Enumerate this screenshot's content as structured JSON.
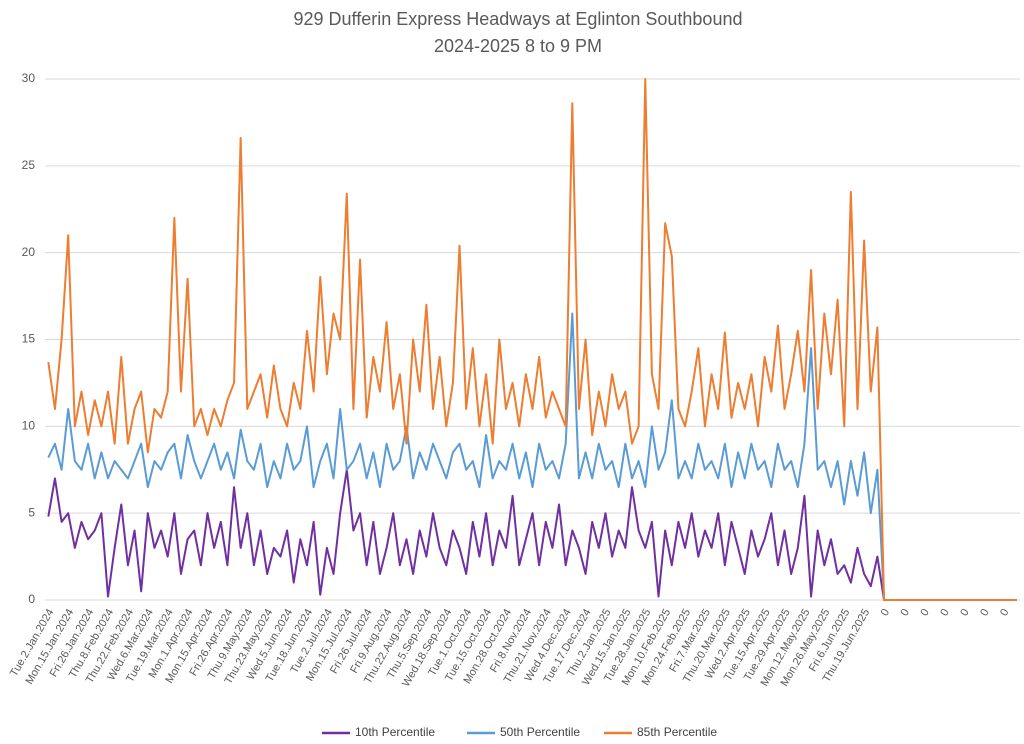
{
  "chart_data": {
    "type": "line",
    "title": "929 Dufferin Express Headways at Eglinton Southbound",
    "subtitle": "2024-2025 8 to 9 PM",
    "categories": [
      "Tue.2.Jan.2024",
      null,
      null,
      "Mon.15.Jan.2024",
      null,
      null,
      "Fri.26.Jan.2024",
      null,
      null,
      "Thu.8.Feb.2024",
      null,
      null,
      "Thu.22.Feb.2024",
      null,
      null,
      "Wed.6.Mar.2024",
      null,
      null,
      "Tue.19.Mar.2024",
      null,
      null,
      "Mon.1.Apr.2024",
      null,
      null,
      "Mon.15.Apr.2024",
      null,
      null,
      "Fri.26.Apr.2024",
      null,
      null,
      "Thu.9.May.2024",
      null,
      null,
      "Thu.23.May.2024",
      null,
      null,
      "Wed.5.Jun.2024",
      null,
      null,
      "Tue.18.Jun.2024",
      null,
      null,
      "Tue.2.Jul.2024",
      null,
      null,
      "Mon.15.Jul.2024",
      null,
      null,
      "Fri.26.Jul.2024",
      null,
      null,
      "Fri.9.Aug.2024",
      null,
      null,
      "Thu.22.Aug.2024",
      null,
      null,
      "Thu.5.Sep.2024",
      null,
      null,
      "Wed.18.Sep.2024",
      null,
      null,
      "Tue.1.Oct.2024",
      null,
      null,
      "Tue.15.Oct.2024",
      null,
      null,
      "Mon.28.Oct.2024",
      null,
      null,
      "Fri.8.Nov.2024",
      null,
      null,
      "Thu.21.Nov.2024",
      null,
      null,
      "Wed.4.Dec.2024",
      null,
      null,
      "Tue.17.Dec.2024",
      null,
      null,
      "Thu.2.Jan.2025",
      null,
      null,
      "Wed.15.Jan.2025",
      null,
      null,
      "Tue.28.Jan.2025",
      null,
      null,
      "Mon.10.Feb.2025",
      null,
      null,
      "Mon.24.Feb.2025",
      null,
      null,
      "Fri.7.Mar.2025",
      null,
      null,
      "Thu.20.Mar.2025",
      null,
      null,
      "Wed.2.Apr.2025",
      null,
      null,
      "Tue.15.Apr.2025",
      null,
      null,
      "Tue.29.Apr.2025",
      null,
      null,
      "Mon.12.May.2025",
      null,
      null,
      "Mon.26.May.2025",
      null,
      null,
      "Fri.6.Jun.2025",
      null,
      null,
      "Thu.19.Jun.2025",
      null,
      null,
      "0",
      null,
      null,
      "0",
      null,
      null,
      "0",
      null,
      null,
      "0",
      null,
      null,
      "0",
      null,
      null,
      "0",
      null,
      null,
      "0",
      null,
      null
    ],
    "series": [
      {
        "name": "10th Percentile",
        "color": "#7030a0",
        "values": [
          4.8,
          7,
          4.5,
          5,
          3,
          4.5,
          3.5,
          4,
          5,
          0.2,
          3,
          5.5,
          2,
          4,
          0.5,
          5,
          3,
          4,
          2.5,
          5,
          1.5,
          3.5,
          4,
          2,
          5,
          3,
          4.5,
          2,
          6.5,
          3,
          5,
          2,
          4,
          1.5,
          3,
          2.5,
          4,
          1,
          3.5,
          2,
          4.5,
          0.3,
          3,
          1.5,
          5,
          7.5,
          4,
          5,
          2,
          4.5,
          1.5,
          3,
          5,
          2,
          3.5,
          1.5,
          4,
          2.5,
          5,
          3,
          2,
          4,
          3,
          1.5,
          4.5,
          2.5,
          5,
          2,
          4,
          3,
          6,
          2,
          3.5,
          5,
          2,
          4.5,
          3,
          5.5,
          2,
          4,
          3,
          1.5,
          4.5,
          3,
          5,
          2.5,
          4,
          3,
          6.5,
          4,
          3,
          4.5,
          0.2,
          4,
          2,
          4.5,
          3,
          5,
          2.5,
          4,
          3,
          5,
          2,
          4.5,
          3,
          1.5,
          4,
          2.5,
          3.5,
          5,
          2,
          4,
          1.5,
          3,
          6,
          0.2,
          4,
          2,
          3.5,
          1.5,
          2,
          1,
          3,
          1.5,
          0.8,
          2.5,
          0,
          0,
          0,
          0,
          0,
          0,
          0,
          0,
          0,
          0,
          0,
          0,
          0,
          0,
          0,
          0,
          0,
          0,
          0,
          0,
          0
        ]
      },
      {
        "name": "50th Percentile",
        "color": "#5b9bd5",
        "values": [
          8.2,
          9,
          7.5,
          11,
          8,
          7.5,
          9,
          7,
          8.5,
          7,
          8,
          7.5,
          7,
          8,
          9,
          6.5,
          8,
          7.5,
          8.5,
          9,
          7,
          9.5,
          8,
          7,
          8,
          9,
          7.5,
          8.5,
          7,
          9.8,
          8,
          7.5,
          9,
          6.5,
          8,
          7,
          9,
          7.5,
          8,
          10,
          6.5,
          8,
          9,
          7,
          11,
          7.5,
          8,
          9,
          7,
          8.5,
          6.5,
          9,
          7.5,
          8,
          10,
          7,
          8.5,
          7.5,
          9,
          8,
          7,
          8.5,
          9,
          7.5,
          8,
          6.5,
          9.5,
          7,
          8,
          7.5,
          9,
          7,
          8.5,
          6.5,
          9,
          7.5,
          8,
          7,
          9,
          16.5,
          7,
          8.5,
          7,
          9,
          7.5,
          8,
          6.5,
          9,
          7,
          8,
          6.5,
          10,
          7.5,
          8.5,
          11.5,
          7,
          8,
          7,
          9,
          7.5,
          8,
          7,
          9,
          6.5,
          8.5,
          7,
          9,
          7.5,
          8,
          6.5,
          9,
          7.5,
          8,
          6.5,
          9,
          14.5,
          7.5,
          8,
          6.5,
          8,
          5.5,
          8,
          6,
          8.5,
          5,
          7.5,
          0,
          0,
          0,
          0,
          0,
          0,
          0,
          0,
          0,
          0,
          0,
          0,
          0,
          0,
          0,
          0,
          0,
          0,
          0,
          0,
          0
        ]
      },
      {
        "name": "85th Percentile",
        "color": "#ed7d31",
        "values": [
          13.7,
          11,
          15,
          21,
          10,
          12,
          9.5,
          11.5,
          10,
          12,
          9,
          14,
          9,
          11,
          12,
          8.5,
          11,
          10.5,
          12,
          22,
          12,
          18.5,
          10,
          11,
          9.5,
          11,
          10,
          11.5,
          12.5,
          26.6,
          11,
          12,
          13,
          10.5,
          13.5,
          11,
          10,
          12.5,
          11,
          15.5,
          12,
          18.6,
          13,
          16.5,
          15,
          23.4,
          11,
          19.6,
          10.5,
          14,
          12,
          16,
          11,
          13,
          9,
          15,
          12,
          17,
          11,
          14,
          10,
          12.5,
          20.4,
          11,
          14.5,
          10,
          13,
          9,
          15,
          11,
          12.5,
          10,
          13,
          11,
          14,
          10.5,
          12,
          11,
          10,
          28.6,
          11,
          15,
          9.5,
          12,
          10,
          13,
          11,
          12,
          9,
          10,
          30,
          13,
          11,
          21.7,
          19.8,
          11,
          10,
          12,
          14.5,
          10,
          13,
          11,
          15.4,
          10.5,
          12.5,
          11,
          13,
          10,
          14,
          12,
          15.8,
          11,
          13,
          15.5,
          12,
          19,
          11,
          16.5,
          13,
          17.3,
          10,
          23.5,
          11,
          20.7,
          12,
          15.7,
          0,
          0,
          0,
          0,
          0,
          0,
          0,
          0,
          0,
          0,
          0,
          0,
          0,
          0,
          0,
          0,
          0,
          0,
          0,
          0,
          0
        ]
      }
    ],
    "ylim": [
      0,
      30
    ],
    "yticks": [
      0,
      5,
      10,
      15,
      20,
      25,
      30
    ],
    "grid": true
  }
}
